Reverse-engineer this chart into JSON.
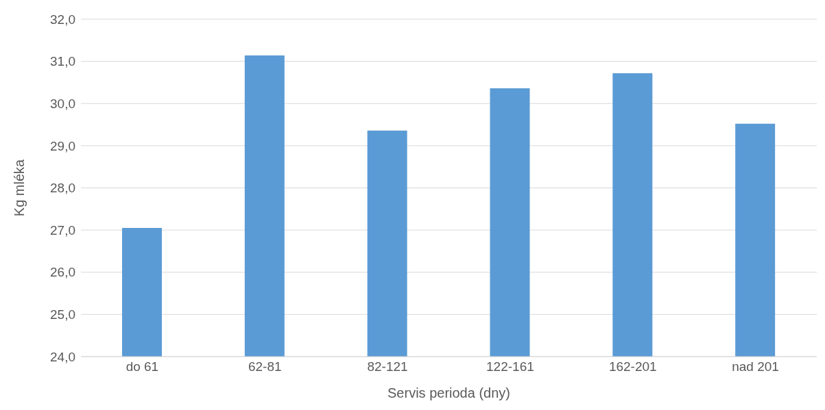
{
  "chart_data": {
    "type": "bar",
    "xlabel": "Servis perioda (dny)",
    "ylabel": "Kg mléka",
    "categories": [
      "do 61",
      "62-81",
      "82-121",
      "122-161",
      "162-201",
      "nad 201"
    ],
    "values": [
      27.05,
      31.14,
      29.36,
      30.36,
      30.72,
      29.52
    ],
    "color": "#5b9bd5",
    "ylim": [
      24,
      32
    ],
    "yticks": [
      {
        "value": 24,
        "label": "24,0"
      },
      {
        "value": 25,
        "label": "25,0"
      },
      {
        "value": 26,
        "label": "26,0"
      },
      {
        "value": 27,
        "label": "27,0"
      },
      {
        "value": 28,
        "label": "28,0"
      },
      {
        "value": 29,
        "label": "29,0"
      },
      {
        "value": 30,
        "label": "30,0"
      },
      {
        "value": 31,
        "label": "31,0"
      },
      {
        "value": 32,
        "label": "32,0"
      }
    ],
    "grid": "y"
  }
}
